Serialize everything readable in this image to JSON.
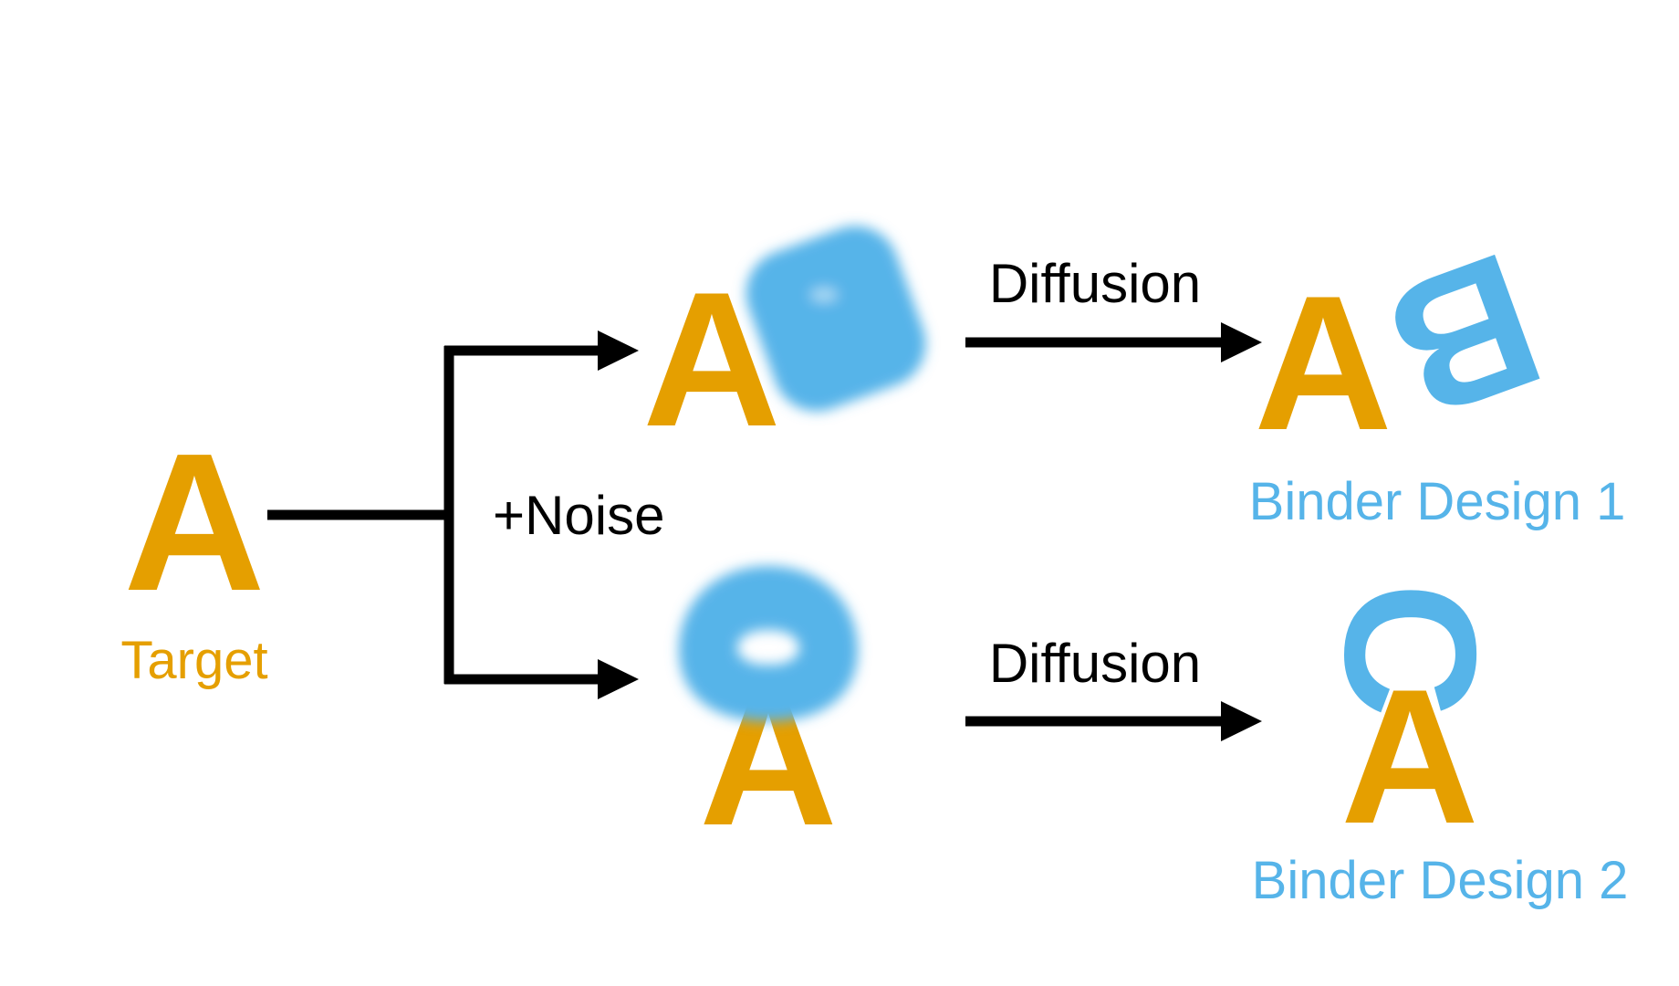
{
  "colors": {
    "target": "#E59F00",
    "binder": "#56B4E9",
    "ink": "#000000",
    "background": "#FFFFFF"
  },
  "glyphs": {
    "target_letter": "A",
    "binder1_letter": "B",
    "binder2_letter": "C"
  },
  "labels": {
    "target": "Target",
    "noise": "+Noise",
    "diffusion_top": "Diffusion",
    "diffusion_bottom": "Diffusion",
    "binder1": "Binder Design 1",
    "binder2": "Binder Design 2"
  }
}
